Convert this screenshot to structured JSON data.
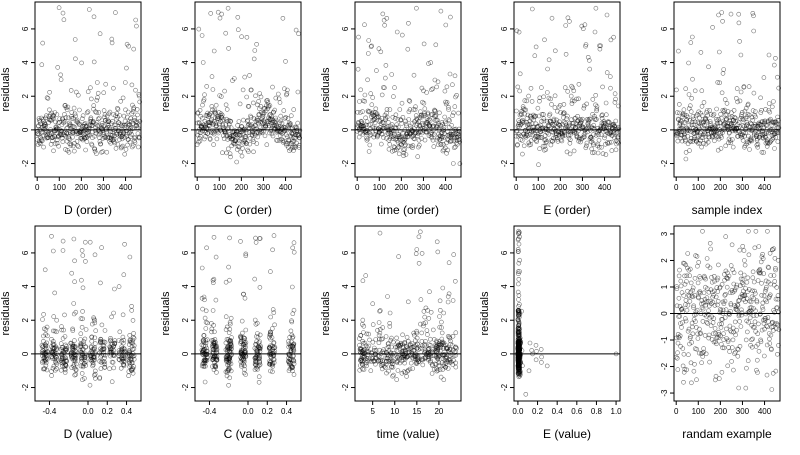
{
  "chart_data": [
    {
      "type": "scatter",
      "xlabel": "D (order)",
      "ylabel": "residuals",
      "xlim": [
        -10,
        470
      ],
      "ylim": [
        -2.8,
        7.6
      ],
      "xticks": [
        "0",
        "100",
        "200",
        "300",
        "400"
      ],
      "yticks": [
        "-2",
        "0",
        "2",
        "4",
        "6"
      ],
      "reference_line": {
        "y": 0
      },
      "points_description": "about 470 open-circle points; index order sorted by D; mostly between -1.5 and 2, sparse outliers up to 7.3"
    },
    {
      "type": "scatter",
      "xlabel": "C (order)",
      "ylabel": "residuals",
      "xlim": [
        -10,
        470
      ],
      "ylim": [
        -2.8,
        7.6
      ],
      "xticks": [
        "0",
        "100",
        "200",
        "300",
        "400"
      ],
      "yticks": [
        "-2",
        "0",
        "2",
        "4",
        "6"
      ],
      "reference_line": {
        "y": 0
      }
    },
    {
      "type": "scatter",
      "xlabel": "time (order)",
      "ylabel": "residuals",
      "xlim": [
        -10,
        470
      ],
      "ylim": [
        -2.8,
        7.6
      ],
      "xticks": [
        "0",
        "100",
        "200",
        "300",
        "400"
      ],
      "yticks": [
        "-2",
        "0",
        "2",
        "4",
        "6"
      ],
      "reference_line": {
        "y": 0
      }
    },
    {
      "type": "scatter",
      "xlabel": "E (order)",
      "ylabel": "residuals",
      "xlim": [
        -10,
        470
      ],
      "ylim": [
        -2.8,
        7.6
      ],
      "xticks": [
        "0",
        "100",
        "200",
        "300",
        "400"
      ],
      "yticks": [
        "-2",
        "0",
        "2",
        "4",
        "6"
      ],
      "reference_line": {
        "y": 0
      }
    },
    {
      "type": "scatter",
      "xlabel": "sample index",
      "ylabel": "residuals",
      "xlim": [
        -10,
        470
      ],
      "ylim": [
        -2.8,
        7.6
      ],
      "xticks": [
        "0",
        "100",
        "200",
        "300",
        "400"
      ],
      "yticks": [
        "-2",
        "0",
        "2",
        "4",
        "6"
      ],
      "reference_line": {
        "y": 0
      }
    },
    {
      "type": "scatter",
      "xlabel": "D (value)",
      "ylabel": "residuals",
      "xlim": [
        -0.55,
        0.55
      ],
      "ylim": [
        -2.8,
        7.6
      ],
      "xticks": [
        "-0.4",
        "0.0",
        "0.2",
        "0.4"
      ],
      "yticks": [
        "-2",
        "0",
        "2",
        "4",
        "6"
      ],
      "reference_line": {
        "y": 0
      }
    },
    {
      "type": "scatter",
      "xlabel": "C (value)",
      "ylabel": "residuals",
      "xlim": [
        -0.55,
        0.55
      ],
      "ylim": [
        -2.8,
        7.6
      ],
      "xticks": [
        "-0.4",
        "0.0",
        "0.2",
        "0.4"
      ],
      "yticks": [
        "-2",
        "0",
        "2",
        "4",
        "6"
      ],
      "reference_line": {
        "y": 0
      }
    },
    {
      "type": "scatter",
      "xlabel": "time (value)",
      "ylabel": "residuals",
      "xlim": [
        1,
        25
      ],
      "ylim": [
        -2.8,
        7.6
      ],
      "xticks": [
        "5",
        "10",
        "15",
        "20"
      ],
      "yticks": [
        "-2",
        "0",
        "2",
        "4",
        "6"
      ],
      "reference_line": {
        "y": 0
      }
    },
    {
      "type": "scatter",
      "xlabel": "E (value)",
      "ylabel": "residuals",
      "xlim": [
        -0.04,
        1.04
      ],
      "ylim": [
        -2.8,
        7.6
      ],
      "xticks": [
        "0.0",
        "0.2",
        "0.4",
        "0.6",
        "0.8",
        "1.0"
      ],
      "yticks": [
        "-2",
        "0",
        "2",
        "4",
        "6"
      ],
      "reference_line": {
        "y": 0
      }
    },
    {
      "type": "scatter",
      "xlabel": "randam example",
      "ylabel": "",
      "xlim": [
        -10,
        470
      ],
      "ylim": [
        -3.3,
        3.3
      ],
      "xticks": [
        "0",
        "100",
        "200",
        "300",
        "400"
      ],
      "yticks": [
        "-3",
        "-2",
        "-1",
        "0",
        "1",
        "2",
        "3"
      ],
      "reference_line": {
        "y": 0
      }
    }
  ]
}
